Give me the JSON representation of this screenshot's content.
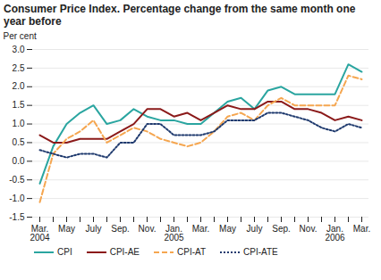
{
  "chart_data": {
    "type": "line",
    "title": "Consumer Price Index. Percentage change from the same month one year before",
    "y_label": "Per cent",
    "categories": [
      "Mar.\n2004",
      null,
      "May",
      null,
      "July",
      null,
      "Sep.",
      null,
      "Nov.",
      null,
      "Jan.\n2005",
      null,
      "Mar.",
      null,
      "May",
      null,
      "July",
      null,
      "Sep.",
      null,
      "Nov.",
      null,
      "Jan.\n2006",
      null,
      "Mar."
    ],
    "series": [
      {
        "name": "CPI",
        "color": "#2aa5a0",
        "line_style": "solid",
        "values": [
          -0.6,
          0.4,
          1.0,
          1.3,
          1.5,
          1.0,
          1.1,
          1.4,
          1.2,
          1.1,
          1.1,
          1.0,
          1.0,
          1.3,
          1.6,
          1.7,
          1.4,
          1.9,
          2.0,
          1.8,
          1.8,
          1.8,
          1.8,
          2.6,
          2.4
        ]
      },
      {
        "name": "CPI-AE",
        "color": "#8b1a1a",
        "line_style": "solid",
        "values": [
          0.7,
          0.5,
          0.5,
          0.6,
          0.6,
          0.6,
          0.8,
          1.0,
          1.4,
          1.4,
          1.2,
          1.3,
          1.1,
          1.3,
          1.5,
          1.4,
          1.4,
          1.6,
          1.6,
          1.4,
          1.4,
          1.3,
          1.1,
          1.2,
          1.1
        ]
      },
      {
        "name": "CPI-AT",
        "color": "#f5a650",
        "line_style": "dashed",
        "values": [
          -1.1,
          0.2,
          0.6,
          0.8,
          1.1,
          0.5,
          0.7,
          0.9,
          0.8,
          0.6,
          0.5,
          0.4,
          0.5,
          0.8,
          1.2,
          1.3,
          1.1,
          1.5,
          1.7,
          1.5,
          1.5,
          1.5,
          1.5,
          2.3,
          2.2
        ]
      },
      {
        "name": "CPI-ATE",
        "color": "#1f3a6e",
        "line_style": "dotted",
        "values": [
          0.3,
          0.2,
          0.1,
          0.2,
          0.2,
          0.1,
          0.5,
          0.5,
          1.0,
          1.0,
          0.7,
          0.7,
          0.7,
          0.8,
          1.1,
          1.1,
          1.1,
          1.3,
          1.3,
          1.2,
          1.1,
          0.9,
          0.8,
          1.0,
          0.9
        ]
      }
    ],
    "ylim": [
      -1.5,
      3.0
    ],
    "yticks": [
      {
        "value": -1.5,
        "label": "-1.5"
      },
      {
        "value": -1,
        "label": "-1.0"
      },
      -0.5,
      {
        "value": 0,
        "label": "0.0"
      },
      0.5,
      {
        "value": 1,
        "label": "1.0"
      },
      1.5,
      {
        "value": 2,
        "label": "2.0"
      },
      2.5,
      {
        "value": 3,
        "label": "3.0"
      }
    ],
    "grid": true,
    "legend": "bottom"
  }
}
